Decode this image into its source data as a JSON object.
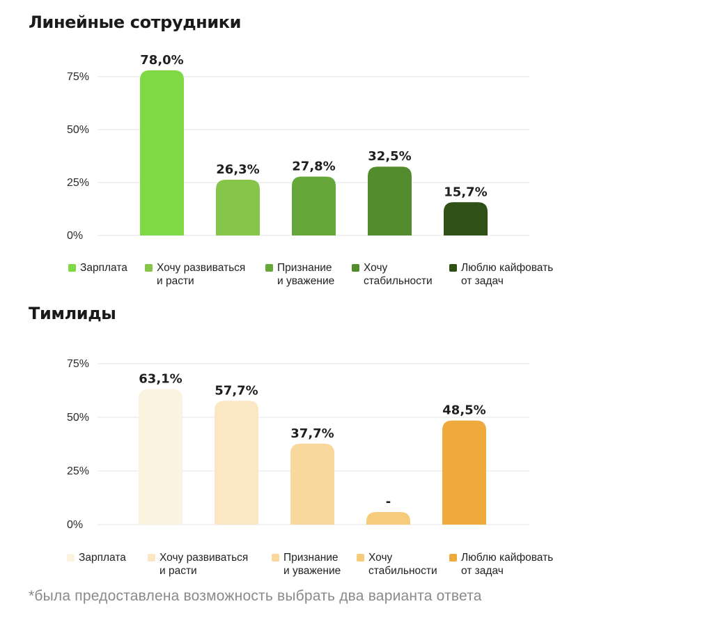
{
  "chart_data": [
    {
      "type": "bar",
      "title": "Линейные сотрудники",
      "categories": [
        "Зарплата",
        "Хочу развиваться\nи расти",
        "Признание\nи уважение",
        "Хочу\nстабильности",
        "Люблю кайфовать\nот задач"
      ],
      "values": [
        78.0,
        26.3,
        27.8,
        32.5,
        15.7
      ],
      "value_labels": [
        "78,0%",
        "26,3%",
        "27,8%",
        "32,5%",
        "15,7%"
      ],
      "colors": [
        "#7fd945",
        "#86c54a",
        "#66a73a",
        "#528c2d",
        "#2f5016"
      ],
      "yticks": [
        0,
        25,
        50,
        75
      ],
      "ytick_labels": [
        "0%",
        "25%",
        "50%",
        "75%"
      ],
      "grid": true,
      "legend": "bottom"
    },
    {
      "type": "bar",
      "title": "Тимлиды",
      "categories": [
        "Зарплата",
        "Хочу развиваться\nи расти",
        "Признание\nи уважение",
        "Хочу\nстабильности",
        "Люблю кайфовать\nот задач"
      ],
      "values": [
        63.1,
        57.7,
        37.7,
        null,
        48.5
      ],
      "value_labels": [
        "63,1%",
        "57,7%",
        "37,7%",
        "-",
        "48,5%"
      ],
      "colors": [
        "#fcf2e0",
        "#fce7c4",
        "#f9d89d",
        "#f6cc7c",
        "#efaa3d"
      ],
      "yticks": [
        0,
        25,
        50,
        75
      ],
      "ytick_labels": [
        "0%",
        "25%",
        "50%",
        "75%"
      ],
      "grid": true,
      "legend": "bottom"
    }
  ],
  "footnote": "*была предоставлена возможность выбрать два варианта ответа"
}
